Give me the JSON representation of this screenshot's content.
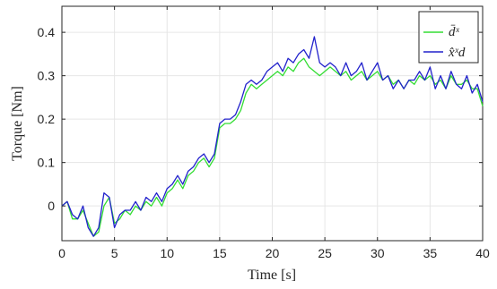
{
  "chart_data": {
    "type": "line",
    "xlabel": "Time [s]",
    "ylabel": "Torque [Nm]",
    "xlim": [
      0,
      40
    ],
    "ylim": [
      -0.08,
      0.46
    ],
    "xticks": [
      0,
      5,
      10,
      15,
      20,
      25,
      30,
      35,
      40
    ],
    "xtick_labels": [
      "0",
      "5",
      "10",
      "15",
      "20",
      "25",
      "30",
      "35",
      "40"
    ],
    "yticks": [
      0,
      0.1,
      0.2,
      0.3,
      0.4
    ],
    "ytick_labels": [
      "0",
      "0.1",
      "0.2",
      "0.3",
      "0.4"
    ],
    "grid": true,
    "legend_position": "top-right",
    "series": [
      {
        "name": "d̄ˣ",
        "color": "#33dd33",
        "x": [
          0,
          0.5,
          1,
          1.5,
          2,
          2.5,
          3,
          3.5,
          4,
          4.5,
          5,
          5.5,
          6,
          6.5,
          7,
          7.5,
          8,
          8.5,
          9,
          9.5,
          10,
          10.5,
          11,
          11.5,
          12,
          12.5,
          13,
          13.5,
          14,
          14.5,
          15,
          15.5,
          16,
          16.5,
          17,
          17.5,
          18,
          18.5,
          19,
          19.5,
          20,
          20.5,
          21,
          21.5,
          22,
          22.5,
          23,
          23.5,
          24,
          24.5,
          25,
          25.5,
          26,
          26.5,
          27,
          27.5,
          28,
          28.5,
          29,
          29.5,
          30,
          30.5,
          31,
          31.5,
          32,
          32.5,
          33,
          33.5,
          34,
          34.5,
          35,
          35.5,
          36,
          36.5,
          37,
          37.5,
          38,
          38.5,
          39,
          39.5,
          40
        ],
        "values": [
          0.0,
          0.01,
          -0.03,
          -0.03,
          -0.01,
          -0.04,
          -0.07,
          -0.06,
          0.0,
          0.02,
          -0.04,
          -0.03,
          -0.01,
          -0.02,
          0.0,
          -0.01,
          0.01,
          0.0,
          0.02,
          0.0,
          0.03,
          0.04,
          0.06,
          0.04,
          0.07,
          0.08,
          0.1,
          0.11,
          0.09,
          0.11,
          0.18,
          0.19,
          0.19,
          0.2,
          0.22,
          0.26,
          0.28,
          0.27,
          0.28,
          0.29,
          0.3,
          0.31,
          0.3,
          0.32,
          0.31,
          0.33,
          0.34,
          0.32,
          0.31,
          0.3,
          0.31,
          0.32,
          0.31,
          0.3,
          0.31,
          0.29,
          0.3,
          0.31,
          0.29,
          0.3,
          0.31,
          0.29,
          0.3,
          0.28,
          0.29,
          0.27,
          0.29,
          0.28,
          0.3,
          0.29,
          0.3,
          0.28,
          0.29,
          0.27,
          0.3,
          0.28,
          0.28,
          0.29,
          0.27,
          0.27,
          0.23
        ]
      },
      {
        "name": "x̂ˣd",
        "color": "#2222cc",
        "x": [
          0,
          0.5,
          1,
          1.5,
          2,
          2.5,
          3,
          3.5,
          4,
          4.5,
          5,
          5.5,
          6,
          6.5,
          7,
          7.5,
          8,
          8.5,
          9,
          9.5,
          10,
          10.5,
          11,
          11.5,
          12,
          12.5,
          13,
          13.5,
          14,
          14.5,
          15,
          15.5,
          16,
          16.5,
          17,
          17.5,
          18,
          18.5,
          19,
          19.5,
          20,
          20.5,
          21,
          21.5,
          22,
          22.5,
          23,
          23.5,
          24,
          24.5,
          25,
          25.5,
          26,
          26.5,
          27,
          27.5,
          28,
          28.5,
          29,
          29.5,
          30,
          30.5,
          31,
          31.5,
          32,
          32.5,
          33,
          33.5,
          34,
          34.5,
          35,
          35.5,
          36,
          36.5,
          37,
          37.5,
          38,
          38.5,
          39,
          39.5,
          40
        ],
        "values": [
          0.0,
          0.01,
          -0.02,
          -0.03,
          0.0,
          -0.05,
          -0.07,
          -0.05,
          0.03,
          0.02,
          -0.05,
          -0.02,
          -0.01,
          -0.01,
          0.01,
          -0.01,
          0.02,
          0.01,
          0.03,
          0.01,
          0.04,
          0.05,
          0.07,
          0.05,
          0.08,
          0.09,
          0.11,
          0.12,
          0.1,
          0.12,
          0.19,
          0.2,
          0.2,
          0.21,
          0.24,
          0.28,
          0.29,
          0.28,
          0.29,
          0.31,
          0.32,
          0.33,
          0.31,
          0.34,
          0.33,
          0.35,
          0.36,
          0.34,
          0.39,
          0.33,
          0.32,
          0.33,
          0.32,
          0.3,
          0.33,
          0.3,
          0.31,
          0.33,
          0.29,
          0.31,
          0.33,
          0.29,
          0.3,
          0.27,
          0.29,
          0.27,
          0.29,
          0.29,
          0.31,
          0.29,
          0.32,
          0.27,
          0.3,
          0.27,
          0.31,
          0.28,
          0.27,
          0.3,
          0.26,
          0.28,
          0.24
        ]
      }
    ]
  }
}
